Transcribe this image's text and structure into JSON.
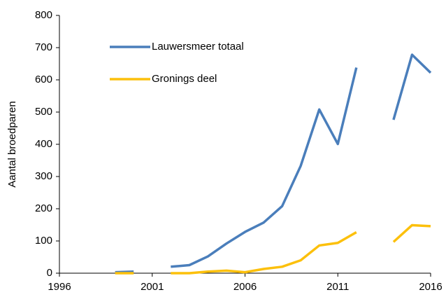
{
  "chart_data": {
    "type": "line",
    "y_label": "Aantal broedparen",
    "x": [
      1999,
      2000,
      2001,
      2002,
      2003,
      2004,
      2005,
      2006,
      2007,
      2008,
      2009,
      2010,
      2011,
      2012,
      2013,
      2014,
      2015,
      2016
    ],
    "series": [
      {
        "name": "Lauwersmeer totaal",
        "color": "#4a7ebb",
        "values": [
          3,
          5,
          null,
          20,
          25,
          52,
          92,
          128,
          157,
          208,
          333,
          508,
          401,
          638,
          null,
          476,
          678,
          622
        ]
      },
      {
        "name": "Gronings deel",
        "color": "#fcc00c",
        "values": [
          0,
          0,
          null,
          0,
          0,
          5,
          8,
          3,
          13,
          20,
          40,
          86,
          94,
          127,
          null,
          97,
          149,
          146
        ]
      }
    ],
    "xlim": [
      1996,
      2016
    ],
    "xticks": [
      1996,
      2001,
      2006,
      2011,
      2016
    ],
    "ylim": [
      0,
      800
    ],
    "yticks": [
      0,
      100,
      200,
      300,
      400,
      500,
      600,
      700,
      800
    ],
    "grid": false,
    "legend": "upper left"
  }
}
